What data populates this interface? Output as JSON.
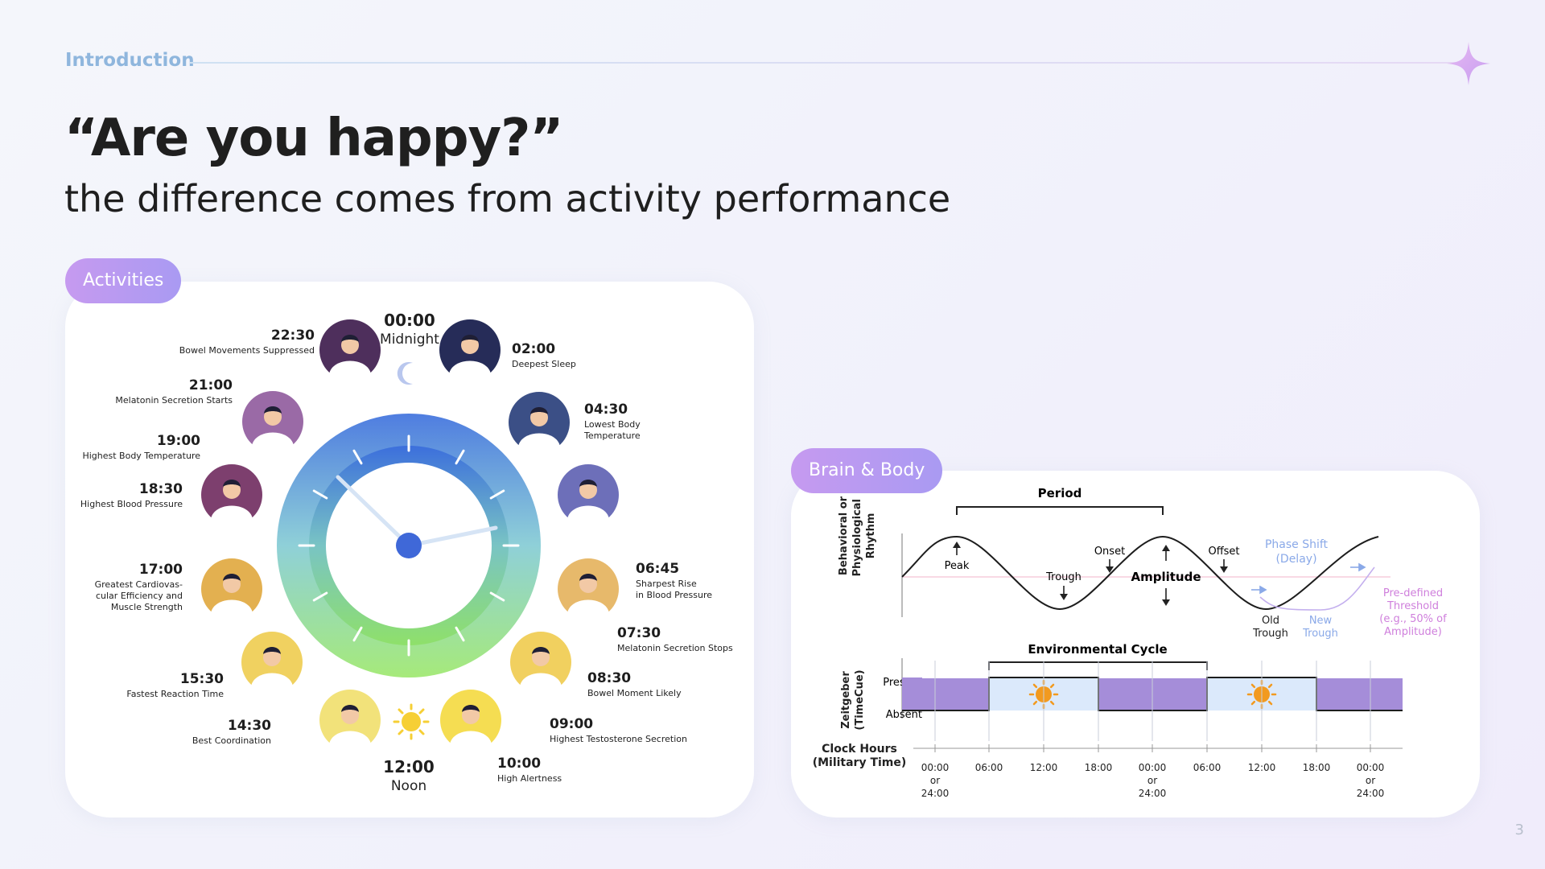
{
  "header": {
    "section": "Introduction"
  },
  "headline": "“Are you happy?”",
  "subheadline": "the difference comes from activity performance",
  "page_number": "3",
  "colors": {
    "accent_purple": "#a99af2",
    "accent_blue": "#8fb6dd",
    "clock_top": "#4d7fe0",
    "clock_bottom": "#9de87c"
  },
  "activities": {
    "label": "Activities",
    "events": [
      {
        "time": "00:00",
        "desc": "Midnight"
      },
      {
        "time": "02:00",
        "desc": "Deepest Sleep"
      },
      {
        "time": "04:30",
        "desc": "Lowest Body Temperature"
      },
      {
        "time": "06:45",
        "desc": "Sharpest Rise in Blood Pressure"
      },
      {
        "time": "07:30",
        "desc": "Melatonin Secretion Stops"
      },
      {
        "time": "08:30",
        "desc": "Bowel Moment Likely"
      },
      {
        "time": "09:00",
        "desc": "Highest Testosterone Secretion"
      },
      {
        "time": "10:00",
        "desc": "High Alertness"
      },
      {
        "time": "12:00",
        "desc": "Noon"
      },
      {
        "time": "14:30",
        "desc": "Best Coordination"
      },
      {
        "time": "15:30",
        "desc": "Fastest Reaction Time"
      },
      {
        "time": "17:00",
        "desc": "Greatest Cardiovas-cular Efficiency and Muscle Strength"
      },
      {
        "time": "18:30",
        "desc": "Highest Blood Pressure"
      },
      {
        "time": "19:00",
        "desc": "Highest Body Temperature"
      },
      {
        "time": "21:00",
        "desc": "Melatonin Secretion Starts"
      },
      {
        "time": "22:30",
        "desc": "Bowel Movements Suppressed"
      }
    ]
  },
  "brain_body": {
    "label": "Brain & Body",
    "y_axis_rhythm": "Behavioral or Physiological Rhythm",
    "y_axis_zeitgeber": "Zeitgeber (TimeCue)",
    "period": "Period",
    "peak": "Peak",
    "trough": "Trough",
    "onset": "Onset",
    "amplitude": "Amplitude",
    "offset": "Offset",
    "phase_shift": "Phase Shift (Delay)",
    "old_trough": "Old Trough",
    "new_trough": "New Trough",
    "threshold": "Pre-defined Threshold (e.g., 50% of Amplitude)",
    "environmental_cycle": "Environmental Cycle",
    "present": "Present",
    "absent": "Absent",
    "clock_hours": "Clock Hours (Military Time)",
    "ticks": [
      "00:00 or 24:00",
      "06:00",
      "12:00",
      "18:00",
      "00:00 or 24:00",
      "06:00",
      "12:00",
      "18:00",
      "00:00 or 24:00"
    ],
    "zeitgeber_pattern": [
      "night",
      "day",
      "night",
      "day",
      "night"
    ]
  }
}
